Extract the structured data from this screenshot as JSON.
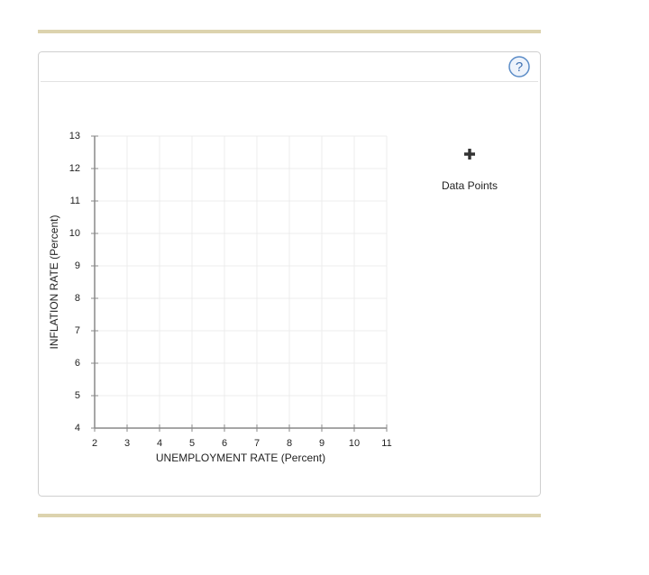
{
  "help_button": "?",
  "tool": {
    "label": "Data Points"
  },
  "chart_data": {
    "type": "scatter",
    "xlabel": "UNEMPLOYMENT RATE (Percent)",
    "ylabel": "INFLATION RATE (Percent)",
    "xlim": [
      2,
      11
    ],
    "xticks": [
      2,
      3,
      4,
      5,
      6,
      7,
      8,
      9,
      10,
      11
    ],
    "ylim": [
      4,
      13
    ],
    "yticks": [
      4,
      5,
      6,
      7,
      8,
      9,
      10,
      11,
      12,
      13
    ],
    "grid": true,
    "series": []
  }
}
